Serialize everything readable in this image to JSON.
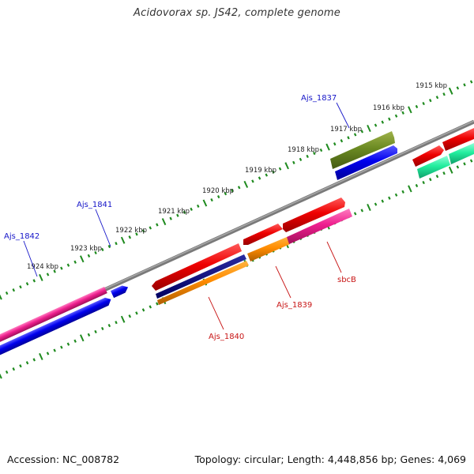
{
  "title": "Acidovorax sp. JS42, complete genome",
  "footer": {
    "accession": "Accession: NC_008782",
    "summary": "Topology: circular; Length: 4,448,856 bp; Genes: 4,069"
  },
  "colors": {
    "backbone": "#808080",
    "tick": "#1e8a1e",
    "label_blue": "#1515c8",
    "label_red": "#c81515"
  },
  "scale_labels": [
    "1915 kbp",
    "1916 kbp",
    "1917 kbp",
    "1918 kbp",
    "1919 kbp",
    "1920 kbp",
    "1921 kbp",
    "1922 kbp",
    "1923 kbp",
    "1924 kbp"
  ],
  "gene_labels": [
    "Ajs_1837",
    "Ajs_1841",
    "Ajs_1842",
    "sbcB",
    "Ajs_1839",
    "Ajs_1840"
  ]
}
